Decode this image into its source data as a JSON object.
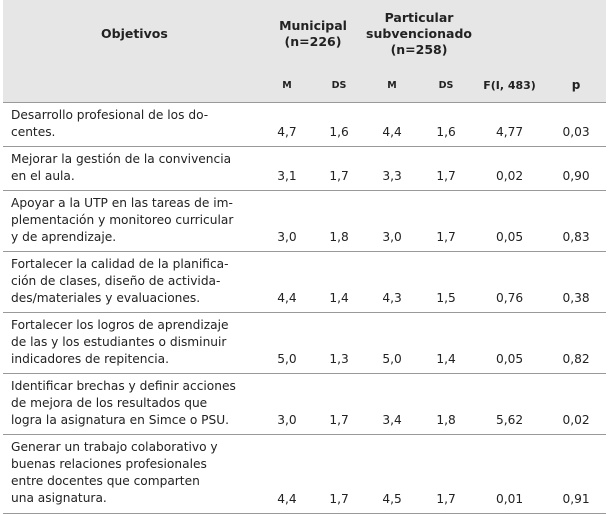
{
  "table": {
    "header": {
      "objectives": "Objetivos",
      "groups": [
        [
          "Municipal",
          "(n=226)"
        ],
        [
          "Particular",
          "subvencionado",
          "(n=258)"
        ]
      ],
      "columns": [
        "M",
        "DS",
        "M",
        "DS",
        "F(I, 483)",
        "p"
      ]
    },
    "rows": [
      {
        "objective": [
          "Desarrollo profesional de los do-",
          "centes."
        ],
        "values": [
          "4,7",
          "1,6",
          "4,4",
          "1,6",
          "4,77",
          "0,03"
        ]
      },
      {
        "objective": [
          "Mejorar la gestión de la convivencia",
          "en el aula."
        ],
        "values": [
          "3,1",
          "1,7",
          "3,3",
          "1,7",
          "0,02",
          "0,90"
        ]
      },
      {
        "objective": [
          "Apoyar a la UTP en las tareas de im-",
          "plementación y monitoreo curricular",
          "y de aprendizaje."
        ],
        "values": [
          "3,0",
          "1,8",
          "3,0",
          "1,7",
          "0,05",
          "0,83"
        ]
      },
      {
        "objective": [
          "Fortalecer la calidad de la planifica-",
          "ción de clases, diseño de activida-",
          "des/materiales y evaluaciones."
        ],
        "values": [
          "4,4",
          "1,4",
          "4,3",
          "1,5",
          "0,76",
          "0,38"
        ]
      },
      {
        "objective": [
          "Fortalecer los logros de aprendizaje",
          "de las y los estudiantes o disminuir",
          "indicadores de repitencia."
        ],
        "values": [
          "5,0",
          "1,3",
          "5,0",
          "1,4",
          "0,05",
          "0,82"
        ]
      },
      {
        "objective": [
          "Identificar brechas y definir acciones",
          "de mejora de los resultados que",
          "logra la asignatura en Simce o PSU."
        ],
        "values": [
          "3,0",
          "1,7",
          "3,4",
          "1,8",
          "5,62",
          "0,02"
        ]
      },
      {
        "objective": [
          "Generar un trabajo colaborativo y",
          "buenas relaciones profesionales",
          "entre docentes que comparten",
          "una asignatura."
        ],
        "values": [
          "4,4",
          "1,7",
          "4,5",
          "1,7",
          "0,01",
          "0,91"
        ]
      }
    ]
  }
}
